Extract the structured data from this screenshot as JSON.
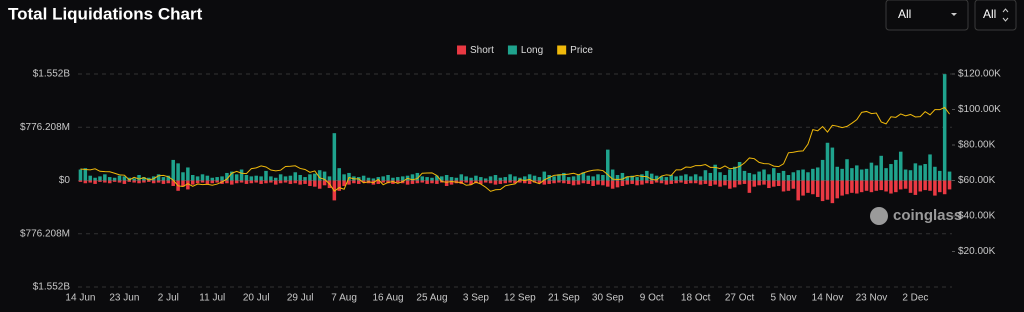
{
  "title": "Total Liquidations Chart",
  "controls": [
    {
      "label": "All"
    },
    {
      "label": "All"
    }
  ],
  "watermark": "coinglass",
  "chart_data": {
    "type": "bar-line",
    "legend": "top-center",
    "grid": true,
    "categories": [
      "14 Jun",
      null,
      null,
      null,
      null,
      null,
      null,
      null,
      null,
      "23 Jun",
      null,
      null,
      null,
      null,
      null,
      null,
      null,
      null,
      "2 Jul",
      null,
      null,
      null,
      null,
      null,
      null,
      null,
      null,
      "11 Jul",
      null,
      null,
      null,
      null,
      null,
      null,
      null,
      null,
      "20 Jul",
      null,
      null,
      null,
      null,
      null,
      null,
      null,
      null,
      "29 Jul",
      null,
      null,
      null,
      null,
      null,
      null,
      null,
      null,
      "7 Aug",
      null,
      null,
      null,
      null,
      null,
      null,
      null,
      null,
      "16 Aug",
      null,
      null,
      null,
      null,
      null,
      null,
      null,
      null,
      "25 Aug",
      null,
      null,
      null,
      null,
      null,
      null,
      null,
      null,
      "3 Sep",
      null,
      null,
      null,
      null,
      null,
      null,
      null,
      null,
      "12 Sep",
      null,
      null,
      null,
      null,
      null,
      null,
      null,
      null,
      "21 Sep",
      null,
      null,
      null,
      null,
      null,
      null,
      null,
      null,
      "30 Sep",
      null,
      null,
      null,
      null,
      null,
      null,
      null,
      null,
      "9 Oct",
      null,
      null,
      null,
      null,
      null,
      null,
      null,
      null,
      "18 Oct",
      null,
      null,
      null,
      null,
      null,
      null,
      null,
      null,
      "27 Oct",
      null,
      null,
      null,
      null,
      null,
      null,
      null,
      null,
      "5 Nov",
      null,
      null,
      null,
      null,
      null,
      null,
      null,
      null,
      "14 Nov",
      null,
      null,
      null,
      null,
      null,
      null,
      null,
      null,
      "23 Nov",
      null,
      null,
      null,
      null,
      null,
      null,
      null,
      null,
      "2 Dec",
      null,
      null,
      null,
      null,
      null,
      null,
      null
    ],
    "ylim": [
      -1552.416,
      1552.416
    ],
    "yticks": [
      {
        "value": 1552.416,
        "label": "$1.552B"
      },
      {
        "value": 776.208,
        "label": "$776.208M"
      },
      {
        "value": 0,
        "label": "$0"
      },
      {
        "value": -776.208,
        "label": "$776.208M"
      },
      {
        "value": -1552.416,
        "label": "$1.552B"
      }
    ],
    "y2lim": [
      0,
      120
    ],
    "y2ticks": [
      {
        "value": 120,
        "label": "$120.00K"
      },
      {
        "value": 100,
        "label": "$100.00K"
      },
      {
        "value": 80,
        "label": "$80.00K"
      },
      {
        "value": 60,
        "label": "$60.00K"
      },
      {
        "value": 40,
        "label": "$40.00K"
      },
      {
        "value": 20,
        "label": "$20.00K"
      }
    ],
    "series": [
      {
        "name": "Short",
        "color": "#ea3943",
        "kind": "bar",
        "values": [
          -20,
          -40,
          -30,
          -50,
          -20,
          -30,
          -40,
          -20,
          -30,
          -50,
          -20,
          -30,
          -40,
          -30,
          -20,
          -40,
          -30,
          -50,
          -40,
          -80,
          -150,
          -90,
          -130,
          -60,
          -40,
          -30,
          -50,
          -40,
          -30,
          -50,
          -40,
          -60,
          -40,
          -30,
          -50,
          -40,
          -30,
          -50,
          -40,
          -30,
          -60,
          -40,
          -30,
          -50,
          -40,
          -60,
          -50,
          -80,
          -90,
          -120,
          -70,
          -110,
          -290,
          -150,
          -80,
          -60,
          -40,
          -50,
          -30,
          -40,
          -60,
          -50,
          -30,
          -40,
          -50,
          -30,
          -40,
          -60,
          -50,
          -40,
          -30,
          -50,
          -40,
          -50,
          -30,
          -80,
          -60,
          -40,
          -50,
          -30,
          -60,
          -40,
          -50,
          -30,
          -40,
          -60,
          -50,
          -40,
          -30,
          -40,
          -30,
          -40,
          -50,
          -30,
          -40,
          -60,
          -50,
          -40,
          -30,
          -40,
          -50,
          -70,
          -60,
          -40,
          -50,
          -80,
          -60,
          -70,
          -90,
          -120,
          -100,
          -80,
          -60,
          -50,
          -70,
          -60,
          -40,
          -50,
          -30,
          -40,
          -60,
          -50,
          -40,
          -30,
          -50,
          -40,
          -40,
          -60,
          -50,
          -80,
          -60,
          -90,
          -70,
          -120,
          -100,
          -60,
          -50,
          -180,
          -90,
          -70,
          -60,
          -110,
          -90,
          -80,
          -160,
          -150,
          -120,
          -290,
          -220,
          -180,
          -200,
          -240,
          -300,
          -280,
          -330,
          -260,
          -220,
          -200,
          -180,
          -190,
          -170,
          -150,
          -170,
          -150,
          -140,
          -160,
          -190,
          -170,
          -130,
          -120,
          -180,
          -210,
          -160,
          -140,
          -150,
          -220,
          -170,
          -200,
          -130
        ]
      },
      {
        "name": "Long",
        "color": "#1fa38d",
        "kind": "bar",
        "values": [
          160,
          180,
          70,
          40,
          60,
          90,
          50,
          40,
          70,
          60,
          40,
          30,
          80,
          50,
          40,
          60,
          90,
          50,
          70,
          300,
          250,
          120,
          190,
          80,
          60,
          90,
          70,
          40,
          50,
          60,
          110,
          130,
          90,
          160,
          80,
          60,
          70,
          60,
          140,
          60,
          40,
          90,
          60,
          70,
          120,
          80,
          50,
          90,
          100,
          150,
          130,
          60,
          690,
          180,
          90,
          110,
          60,
          50,
          70,
          40,
          30,
          50,
          60,
          80,
          40,
          50,
          60,
          70,
          90,
          110,
          60,
          50,
          40,
          70,
          60,
          80,
          50,
          40,
          90,
          60,
          40,
          70,
          50,
          30,
          60,
          80,
          40,
          50,
          90,
          60,
          40,
          60,
          90,
          70,
          50,
          130,
          80,
          60,
          90,
          110,
          50,
          60,
          80,
          120,
          70,
          60,
          90,
          80,
          450,
          160,
          80,
          110,
          60,
          70,
          50,
          90,
          140,
          100,
          70,
          60,
          50,
          80,
          60,
          70,
          90,
          60,
          90,
          60,
          150,
          110,
          230,
          120,
          80,
          160,
          200,
          270,
          140,
          110,
          90,
          130,
          160,
          90,
          180,
          110,
          140,
          80,
          120,
          150,
          160,
          120,
          170,
          190,
          300,
          550,
          480,
          200,
          170,
          310,
          180,
          220,
          160,
          170,
          260,
          220,
          360,
          180,
          240,
          300,
          420,
          160,
          150,
          250,
          220,
          240,
          380,
          200,
          140,
          1550,
          130
        ]
      },
      {
        "name": "Price",
        "color": "#f0b90b",
        "kind": "line",
        "axis": "y2",
        "values": [
          66.5,
          66.2,
          66.0,
          66.6,
          65.2,
          65.0,
          64.9,
          64.1,
          63.2,
          63.0,
          60.3,
          61.8,
          60.8,
          61.6,
          60.3,
          61.0,
          62.7,
          62.9,
          62.1,
          60.2,
          57.0,
          56.6,
          58.2,
          56.7,
          58.0,
          57.7,
          57.9,
          57.3,
          58.0,
          59.2,
          60.8,
          64.1,
          65.1,
          64.1,
          63.9,
          66.7,
          67.1,
          68.2,
          67.6,
          65.9,
          65.4,
          65.8,
          67.9,
          68.0,
          68.3,
          66.8,
          66.2,
          64.6,
          65.4,
          61.5,
          60.7,
          58.1,
          54.0,
          56.0,
          55.1,
          61.7,
          60.9,
          60.9,
          58.7,
          59.3,
          58.8,
          60.6,
          57.6,
          58.9,
          59.4,
          58.4,
          59.4,
          61.2,
          60.4,
          61.1,
          64.1,
          64.2,
          64.3,
          62.8,
          59.4,
          59.0,
          59.4,
          59.1,
          58.9,
          57.3,
          57.6,
          59.1,
          58.0,
          56.2,
          53.9,
          54.8,
          54.9,
          57.0,
          57.6,
          58.1,
          60.5,
          60.0,
          60.6,
          59.1,
          58.2,
          60.3,
          61.7,
          62.9,
          63.2,
          63.3,
          63.6,
          64.1,
          63.2,
          64.3,
          65.2,
          65.8,
          66.0,
          65.6,
          63.3,
          60.8,
          60.6,
          60.8,
          62.1,
          62.1,
          62.8,
          62.3,
          62.2,
          60.6,
          60.3,
          62.5,
          63.2,
          62.9,
          66.0,
          66.0,
          67.6,
          67.4,
          68.4,
          68.4,
          69.0,
          67.4,
          67.4,
          66.7,
          68.2,
          66.6,
          67.0,
          67.9,
          69.9,
          72.7,
          72.3,
          70.2,
          69.5,
          69.4,
          68.1,
          67.8,
          69.4,
          75.6,
          75.9,
          76.5,
          76.7,
          80.5,
          88.7,
          88.0,
          90.4,
          87.3,
          91.1,
          90.6,
          89.8,
          90.5,
          92.3,
          94.3,
          98.4,
          98.9,
          97.7,
          98.0,
          93.0,
          91.9,
          95.9,
          95.6,
          97.5,
          96.4,
          97.2,
          95.8,
          96.0,
          98.8,
          97.0,
          99.9,
          99.9,
          101.2,
          97.4
        ]
      }
    ]
  }
}
